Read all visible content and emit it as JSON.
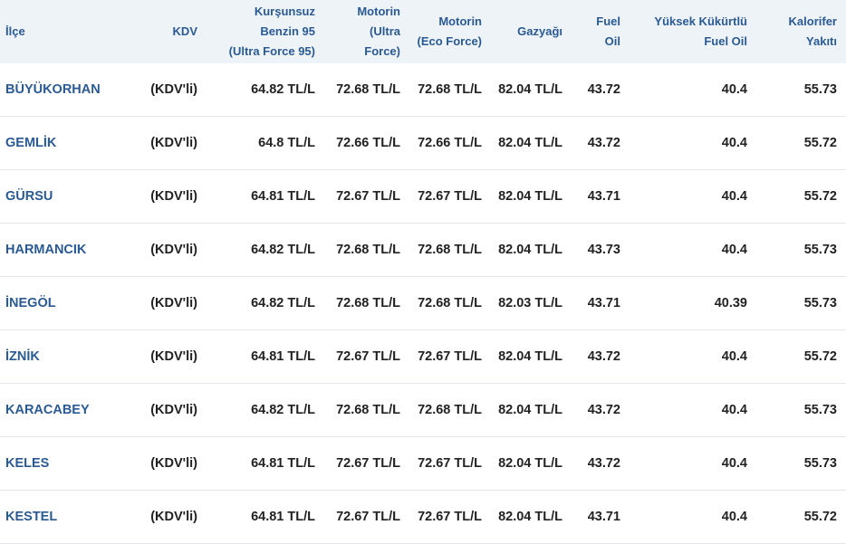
{
  "columns": [
    {
      "lines": [
        "İlçe"
      ]
    },
    {
      "lines": [
        "KDV"
      ]
    },
    {
      "lines": [
        "Kurşunsuz",
        "Benzin 95",
        "(Ultra Force 95)"
      ]
    },
    {
      "lines": [
        "Motorin",
        "(Ultra",
        "Force)"
      ]
    },
    {
      "lines": [
        "Motorin",
        "(Eco Force)"
      ]
    },
    {
      "lines": [
        "Gazyağı"
      ]
    },
    {
      "lines": [
        "Fuel",
        "Oil"
      ]
    },
    {
      "lines": [
        "Yüksek Kükürtlü",
        "Fuel Oil"
      ]
    },
    {
      "lines": [
        "Kalorifer",
        "Yakıtı"
      ]
    }
  ],
  "rows": [
    [
      "BÜYÜKORHAN",
      "(KDV'li)",
      "64.82 TL/L",
      "72.68 TL/L",
      "72.68 TL/L",
      "82.04 TL/L",
      "43.72",
      "40.4",
      "55.73"
    ],
    [
      "GEMLİK",
      "(KDV'li)",
      "64.8 TL/L",
      "72.66 TL/L",
      "72.66 TL/L",
      "82.04 TL/L",
      "43.72",
      "40.4",
      "55.72"
    ],
    [
      "GÜRSU",
      "(KDV'li)",
      "64.81 TL/L",
      "72.67 TL/L",
      "72.67 TL/L",
      "82.04 TL/L",
      "43.71",
      "40.4",
      "55.72"
    ],
    [
      "HARMANCIK",
      "(KDV'li)",
      "64.82 TL/L",
      "72.68 TL/L",
      "72.68 TL/L",
      "82.04 TL/L",
      "43.73",
      "40.4",
      "55.73"
    ],
    [
      "İNEGÖL",
      "(KDV'li)",
      "64.82 TL/L",
      "72.68 TL/L",
      "72.68 TL/L",
      "82.03 TL/L",
      "43.71",
      "40.39",
      "55.73"
    ],
    [
      "İZNİK",
      "(KDV'li)",
      "64.81 TL/L",
      "72.67 TL/L",
      "72.67 TL/L",
      "82.04 TL/L",
      "43.72",
      "40.4",
      "55.72"
    ],
    [
      "KARACABEY",
      "(KDV'li)",
      "64.82 TL/L",
      "72.68 TL/L",
      "72.68 TL/L",
      "82.04 TL/L",
      "43.72",
      "40.4",
      "55.73"
    ],
    [
      "KELES",
      "(KDV'li)",
      "64.81 TL/L",
      "72.67 TL/L",
      "72.67 TL/L",
      "82.04 TL/L",
      "43.72",
      "40.4",
      "55.73"
    ],
    [
      "KESTEL",
      "(KDV'li)",
      "64.81 TL/L",
      "72.67 TL/L",
      "72.67 TL/L",
      "82.04 TL/L",
      "43.71",
      "40.4",
      "55.72"
    ]
  ],
  "colors": {
    "header_bg": "#eef3f8",
    "link": "#2a5a93",
    "row_border": "#e3e6ea"
  }
}
